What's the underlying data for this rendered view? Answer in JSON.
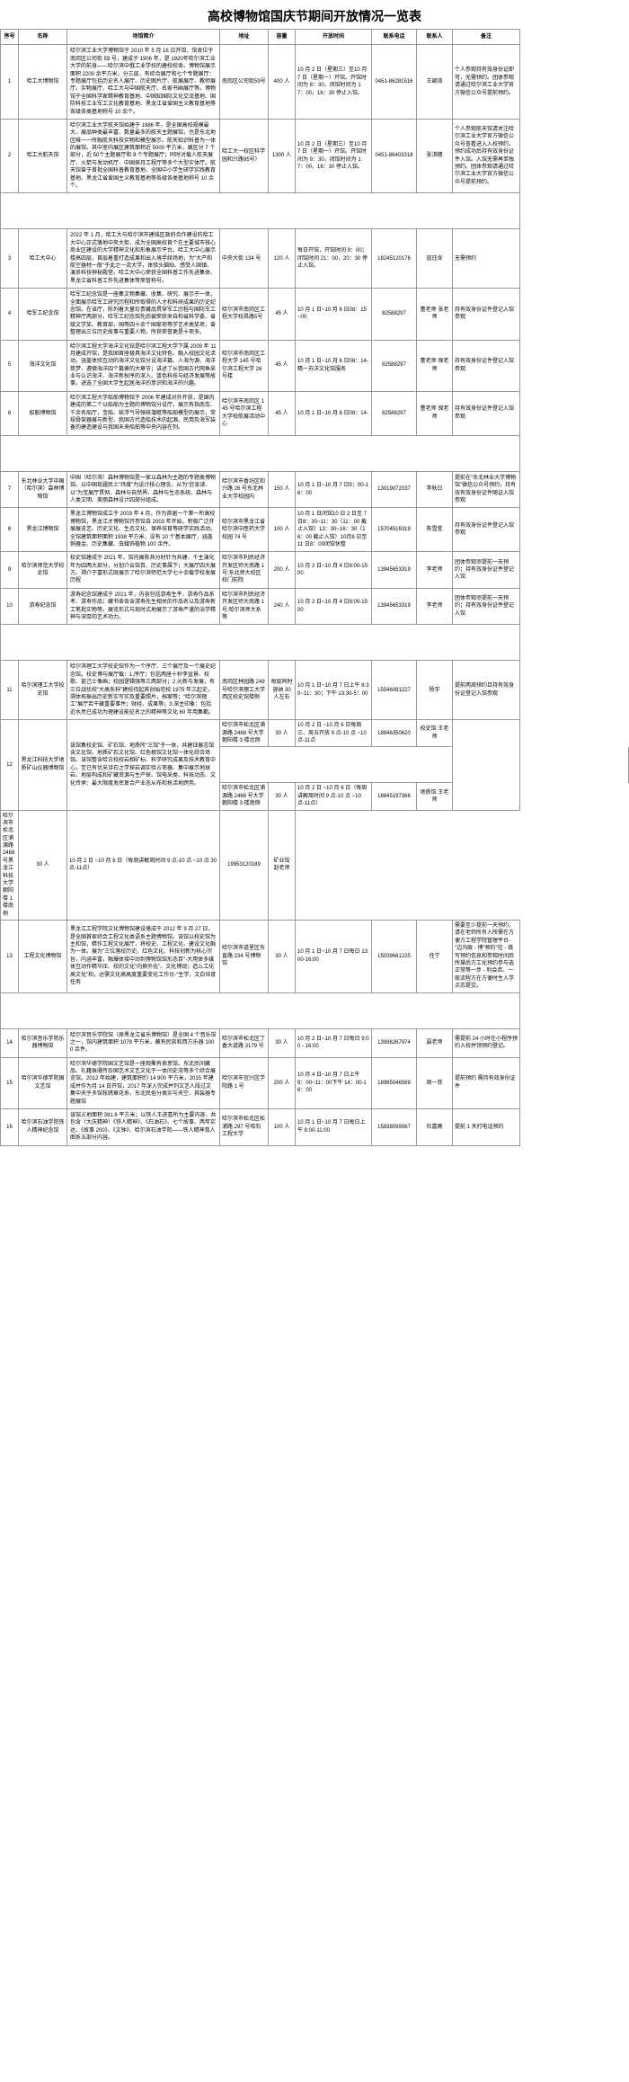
{
  "title": "高校博物馆国庆节期间开放情况一览表",
  "headers": [
    "序号",
    "名称",
    "场馆简介",
    "地址",
    "容量",
    "开放时间",
    "联系电话",
    "联系人",
    "备注"
  ],
  "rows": [
    {
      "seq": "1",
      "name": "哈工大博物馆",
      "desc": "哈尔滨工业大学博物馆于 2010 年 5 月 16 日开馆，馆舍位于南岗区公司街 59 号，建成于 1906 年，是 1920年哈尔滨工业大学的前身——哈尔滨中俄工业学校的建校校舍。博物馆展示面积 2200 余平方米，分三层，有综合展厅和七个专题展厅：专题展厅包括历史名人展厅、历史图片厅、航展展厅、教师展厅、实物展厅、哈工大与中国航天厅、名家书画展厅等。博物馆于全国科学家精神教育基地、中国知国际文化交流基地、国防科技工业军工文化教育基地、黑龙江省爱国主义教育基地等各级各类基地称号 10 余个。",
      "addr": "南岗区公司街59号",
      "cap": "400 人",
      "time": "10 月 2 日（星期三）至10 月 7 日（星期一）开馆。开馆时间为 8：30，闭馆时间为 17：00，16：30 停止入馆。",
      "phone": "0451-86281516",
      "contact": "王颖琦",
      "note": "个人参观持有效身份证即可，无需预约。团体参观请通过哈尔滨工业大学官方微信公众号提前预约。"
    },
    {
      "seq": "2",
      "name": "哈工大航天馆",
      "desc": "哈尔滨工业大学航天馆始建于 1986 年，是全国高校规模最大、展品种类最丰富、数量最多的航天主题展馆，也是东北地区唯一一所融航天科技实物和模型展示、航天知识科普为一体的展馆。其中室内展区建筑面积近 5000 平方米，展区分 7 个部分，近 50个主题展厅和 9 个专题展厅；同时对载人航天展厅、火箭与发动机厅、中国探月工程厅等多个大型实体厅。航天馆曾于首批全国科普教育基地、全国中小学生研学实践教育基地、黑龙江省爱国主义教育基地等各级各类基地称号 10 余个。",
      "addr": "哈工大一校区科学园和兴路95号）",
      "cap": "1300 人",
      "time": "10 月 2 日（星期三）至10 月 7 日（星期一）开馆。开馆时间为 9：30，闭馆时间为 17：00，16：30 停止入馆。",
      "phone": "0451-86403318",
      "contact": "张淇穗",
      "note": "个人参观航天馆请关注哈尔滨工业大学官方微信公众号查看进入入校预约，预约成功后持有效身份证件入馆。入馆无需再单独预约。团体参观请通过哈尔滨工业大学官方微信公众号提前预约。"
    },
    {
      "seq": "3",
      "name": "哈工大中心",
      "desc": "2022 年 1 月，哈工大与哈尔滨市建城区政府合作建设的哈工大中心正式落地中央大街，成为全国高校首个在主要城市核心商业区建设的大学精神文化和形象展示平台。哈工大中心展示楼高四层，首层着重打造成果和出入境手续场地，为\"大产和航空器材一般\"于此之一流大学，体验头脑贴、感受人国镇、演员科技神秘殿堂。哈工大中心荣获全国科普工作先进集体、黑龙江省科普工作先进集体等荣誉称号。",
      "addr": "中央大街 134 号",
      "cap": "120 人",
      "time": "每日开馆，开馆时间 9：00；闭馆时间 21：00，20：30 停止入馆。",
      "phone": "18245120176",
      "contact": "寇珏含",
      "note": "无需预约"
    },
    {
      "seq": "4",
      "name": "哈军工纪念馆",
      "desc": "哈军工纪念馆是一座集文物集藏、收集、研究、展示于一体，全面展示哈军工研究历程和所取得的人才和科研成果的历史纪念馆。在该厅，陈列着大量珍贵藏品贯穿军工历程与国防军工精神厅两部分。哈军工纪念馆先后被荣获来自和省科学委、省级文学奖、教育部，国等四十余个国家项等学艺术类奖项，曾整理出三位历史故事与重要人物，所获荣誉更是十项多。",
      "addr": "哈尔滨市南岗区工程大学校昌路5号",
      "cap": "45 人",
      "time": "10 月 1 日~10 月 6 日08：15~00",
      "phone": "82588297",
      "contact": "董老师 张老师",
      "note": "持有效身份证件登记入馆参观"
    },
    {
      "seq": "5",
      "name": "海洋文化馆",
      "desc": "哈尔滨工程大学海洋文化馆是哈尔滨工程大学下属 2009 年 11 月建成开馆，是我国首座极具海洋文化特色、融入校园文化活动，涵盖体验互动的海洋文化馆分设海洋篇、人海为源、海洋筑梦、遵德海洋四个篇章的大章节；讲述了从我国古代网鱼采业与认识海洋、海洋新秋序的深入、蓝色科技与经济发展等故事，进选了全国大学生起居海洋的意识和海洋的兴趣。",
      "addr": "哈尔滨市南岗区工程大学 145 号哈尔滨工程大学 26 号楼",
      "cap": "45 人",
      "time": "10 月 1 日~10 月 6 日08：14-精一苏洋文化馆服务",
      "phone": "82588297",
      "contact": "董老师 保老师",
      "note": "持有效身份证件登记入馆参观"
    },
    {
      "seq": "6",
      "name": "船舶博物馆",
      "desc": "哈尔滨工程大学船舶博物馆于 2006 年建成对外开放，是国内建成的第二个以船舶为主题的博物馆分设厅。展示有指南车、千余名船厅，宝船、蛟浮气导弹核潜艇等船舶模型的展示，常规骨架器展与新型、我国古代造船技术的起源、民用及海军装备的建造建设与我国未来船舶等中央内容在列。",
      "addr": "哈尔滨市南岗区 145 号哈尔滨工程大学校航展活动中心",
      "cap": "45 人",
      "time": "10 月 1 日~10 月 6 日08：14-",
      "phone": "82588297",
      "contact": "董老师 保老师",
      "note": "持有效身份证件登记入馆参观"
    },
    {
      "seq": "7",
      "name": "东北林业大学中国（哈尔滨）森林博物馆",
      "desc": "中国（哈尔滨）森林博物馆是一家以森林为主题的专题类博物馆。以中国现疆民土\"纬度\"为设计核心理念，从为\"信息读、以\"为宝展厅贯彻、森林与自然界、森林与生态系统、森林与人类文明、美丽森林设计四部分组成。",
      "addr": "哈尔滨市香坊区和兴路 26 号东北林业大学校园内",
      "cap": "150 人",
      "time": "10 月 1 日~10 月 7 日9：00-16：00",
      "phone": "13019072037",
      "contact": "李秋日",
      "note": "提前在\"东北林业大学博物馆\"微信公众号预约，持有效有效身份证件随证入馆参观"
    },
    {
      "seq": "8",
      "name": "黑龙江博物馆",
      "desc": "黑龙江博物馆成立于 2003 年 4 月，作为首届一个第一所高校博物馆，黑龙江才博物馆开参馆自 2003 年开始，积极广泛开展展览艺、历史文化、生态文化、保养培育等研学实践活动。全馆建筑面积面积 1938 平方米，设有 10 个基本展厅，涵盖铜器金、历史集藏、虫蛾饰植物 100 余件。",
      "addr": "哈尔滨市黑龙江省哈尔滨中医药大学校园 74 号",
      "cap": "100 人",
      "time": "10 月 1 日闭馆10 日 2 日至 7 日8：30~11：30（11：00 截止入馆）13：30~16：30（16：00 截止入馆）10月8 日至 11 日8：00闭馆休整",
      "phone": "15704516319",
      "contact": "陈雪莹",
      "note": "持有效身份证件登记入馆参观"
    },
    {
      "seq": "9",
      "name": "哈尔滨师范大学校史馆",
      "desc": "校史馆建成于 2021 年，馆内展陈共分时针为共建、千主演化年为四两大部分，分划介云馆百、历史事属下；大展厅四大展方。溯介于富形式既展示了哈尔滨师范大学七十余载学校发展历程",
      "addr": "哈尔滨市利民经济开发区师大南路 1 号;东北师大校区校门前院",
      "cap": "200 人",
      "time": "10 月 2 日~10 月 4 日9:00-15:00",
      "phone": "13945653319",
      "contact": "李老师",
      "note": "团体参观须提前一天预约；持有效身份证件登记入馆"
    },
    {
      "seq": "10",
      "name": "游寿纪念馆",
      "desc": "游寿纪念馆建成于 2021 年，内容包括游寿生平、游寿作品系考、游寿作品；藏书舍各含游寿先生相关的作品名以及游寿新工笔批实物等。展览形式与现时式地展示了游寿严谨的治学精神与深厚的艺术功力。",
      "addr": "哈尔滨市利民经济开发区师大南路 1 号;哈尔滨师大系等",
      "cap": "240 人",
      "time": "10 月 2 日~10 月 4 日9:00-15:00",
      "phone": "13945653319",
      "contact": "李老师",
      "note": "团体参观须提前一天预约；持有效身份证件登记入馆"
    },
    {
      "seq": "11",
      "name": "哈尔滨理工大学校史馆",
      "desc": "哈尔滨理工大学校史馆作为一个序厅、三个展厅及一个展史纪念馆。校史博与展厅载：1.序厅；包括两座十秒李盆景、校歌、甚己士像画；校园逻辑强等三两部分；2.元新与发展，有三位战优校\"大高系科\"建校待起其创始宅校 1975 年三起史，溯体拓振出历史新实写实及重要照片，档案等；\"哈尔滨理工\"展厅若干藏重要事件；财经、成果等；3.深主印象：包括近水亮已成功为理建设能征名之的精神等文化 60 年用集都。",
      "addr": "南岗区林园路 249 号哈尔滨理工大学西区校史馆楼侧",
      "cap": "每层同时容纳 30 人左右",
      "time": "10 月 1 日~10 月 7 日上午 8:30~11：30；下午 13:30-5：00",
      "phone": "15546081227",
      "contact": "杨宇",
      "note": "提前两周预约且持有效身份证登记入馆参观"
    },
    {
      "seq": "12",
      "name": "黑龙江科技大学地质矿山仪器博物馆",
      "desc": "该馆集校史馆、矿石馆、地质所\"三馆\"于一体，共建钰展志馆含文化馆、地质矿石文化馆、红色根馆文化馆一体化综合场馆。该馆整含哈古校校岩相矿标、科学研究成果及技术教育中心，至已有优采诗石之学探岩调实验占审器、集中展示地球岩、地层构成和矿藏资源与生产探、馆电采类、科技动态、文化传承：最大限度发挥复合产业态从布和抢活地跨势。",
      "addr": "哈尔滨市松北区浦源路 2468 号大学朝阳楼 3 楼北侧",
      "cap": "30 人",
      "time": "10 月 2 日 ~10 月 6 日每周三、周五开放 9 点-10 点 ~10 点-11点",
      "phone": "18846350620",
      "contact": "校史馆 王老师",
      "note": ""
    },
    {
      "seq": "",
      "name": "",
      "desc": "",
      "addr": "哈尔滨市松北区浦源路 2468 号大学朝阳楼 3 楼南侧",
      "cap": "30 人",
      "time": "10 月 2 日 ~10 月 6 日（每周讲解周时间 9 点-10 点 ~10 点-11点）",
      "phone": "18845197366",
      "contact": "地质馆 王老师",
      "note": "持有效身份证件登记入馆；需提前一天预约。"
    },
    {
      "seq": "",
      "name": "",
      "desc": "",
      "addr": "哈尔滨市松北区浦源路 2468 号黑龙江科技大学朝阳楼 1 楼南侧",
      "cap": "30 人",
      "time": "10 月 2 日 ~10 月 6 日（每周讲解周时间 9 点-10 点 ~10 点 30 点-11点）",
      "phone": "19953120189",
      "contact": "矿业馆 赵老师",
      "note": ""
    },
    {
      "seq": "13",
      "name": "工程文化博物馆",
      "desc": "黑龙江工程学院文化博物馆建设落成于 2012 年 9 月 27 日，是全国首家综合工程文化类语系主题博物馆。该馆以校史馆为主和馆，精作工程文化展厅，将校史、工程文化、建设文化融为一体。展为\"三位落校历史、红色文化、科技创新为核心宗旨，内涵丰富，融爆体接中动到博物馆馆形态百\"-大用体多媒体互动作精华压、校的文化\"内换外化\"。文化博现；造么工化高文化\"和，达需文化高高度重要变化工作台-\"生学，文白培育任务",
      "addr": "哈尔滨市道里区东直路 234 号博物馆",
      "cap": "30 人",
      "time": "10 月 1 日~10 月 7 日每日 13:00-16:00",
      "phone": "15039661225",
      "contact": "任宁",
      "note": "需要至少提前一天预约，请在老师所有人所需在方便方工程学院管理平台-\"边沟政 - 博\"预约\"往 - 填写预约信息和参观时间后所操后方工化预约参与选正常等一步 - 利会否、一般流程方在方便时生入学点志提交。"
    },
    {
      "seq": "14",
      "name": "哈尔滨音乐学院乐器博物馆",
      "desc": "哈尔滨音乐学院馆（原黑龙江省乐博物馆）是全国 4 个音乐馆之一，馆内建筑面积 1078 平方米，藏有民族和西方乐器 1000 余件。",
      "addr": "哈尔滨市松北区丁香大道路 3179 号",
      "cap": "30 人",
      "time": "10 月 2 日~10 月 7 日每日 9:00 - 16:00",
      "phone": "13936267974",
      "contact": "聂老师",
      "note": "需提前 24 小时在小程序预约入校并领预约登记。"
    },
    {
      "seq": "15",
      "name": "哈尔滨华德学院国文艺馆",
      "desc": "哈尔滨华德学院国文艺馆是一座观聚有表意馆、东北民间藏品、礼籍珠珊传珍国艺术文艺文化于一体间史流等多个综合展览馆。2012 年始建，建筑面积约 14 900 平方米，2015 年建成并作为月 14 日开馆，2017 年深入完成并列文艺人段过文集中天于多馆枝绣章花系，东北民俗分类实与天空、其装器专题展馆",
      "addr": "哈尔滨市宜兴区学院路 1 号",
      "cap": "200 人",
      "time": "10 月 4 日~10 月 7 日上午 9：00~11：00下午 14：00-16：00",
      "phone": "18985046569",
      "contact": "周一菲",
      "note": "提前预约 需持有效身份证件"
    },
    {
      "seq": "16",
      "name": "哈尔滨石油学院铁人精神纪念馆",
      "desc": "该馆占地面积 391.6 平方米；以铁人王进喜所为主要内容，共包含（大庆精神）《铁人精神》、《石油石》、七个故事、两年实达、《故事 200》、《文钟》、哈尔滨石油学院——铁人精神育人图系五部分内容。",
      "addr": "哈尔滨市松北区松浦路 297 号哈石工程大学",
      "cap": "100 人",
      "time": "10 月 1 日~10 月 7 日每日上午 8:00-11:00",
      "phone": "15838099067",
      "contact": "杜嘉薇",
      "note": "提前 1 天打电话预约"
    }
  ],
  "gaps_after": [
    2,
    6,
    10,
    12,
    15
  ]
}
